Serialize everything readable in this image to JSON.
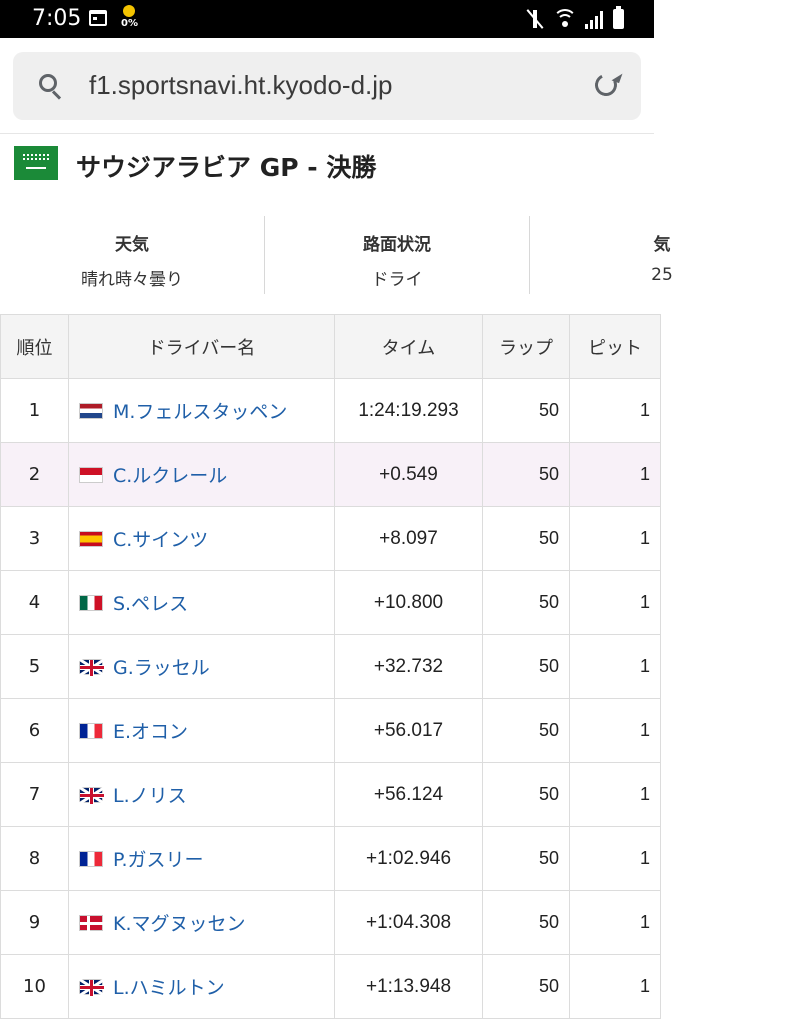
{
  "status_bar": {
    "time": "7:05",
    "data_percent": "0%"
  },
  "browser": {
    "url": "f1.sportsnavi.ht.kyodo-d.jp"
  },
  "race": {
    "title": "サウジアラビア GP - 決勝",
    "flag_icon": "saudi-arabia-flag-icon"
  },
  "conditions": [
    {
      "label": "天気",
      "value": "晴れ時々曇り"
    },
    {
      "label": "路面状況",
      "value": "ドライ"
    },
    {
      "label": "気",
      "value": "25"
    }
  ],
  "table": {
    "headers": [
      "順位",
      "ドライバー名",
      "タイム",
      "ラップ",
      "ピット"
    ],
    "rows": [
      {
        "pos": "1",
        "flag": "netherlands-flag-icon",
        "driver": "M.フェルスタッペン",
        "time": "1:24:19.293",
        "laps": "50",
        "pits": "1"
      },
      {
        "pos": "2",
        "flag": "monaco-flag-icon",
        "driver": "C.ルクレール",
        "time": "+0.549",
        "laps": "50",
        "pits": "1"
      },
      {
        "pos": "3",
        "flag": "spain-flag-icon",
        "driver": "C.サインツ",
        "time": "+8.097",
        "laps": "50",
        "pits": "1"
      },
      {
        "pos": "4",
        "flag": "mexico-flag-icon",
        "driver": "S.ペレス",
        "time": "+10.800",
        "laps": "50",
        "pits": "1"
      },
      {
        "pos": "5",
        "flag": "uk-flag-icon",
        "driver": "G.ラッセル",
        "time": "+32.732",
        "laps": "50",
        "pits": "1"
      },
      {
        "pos": "6",
        "flag": "france-flag-icon",
        "driver": "E.オコン",
        "time": "+56.017",
        "laps": "50",
        "pits": "1"
      },
      {
        "pos": "7",
        "flag": "uk-flag-icon",
        "driver": "L.ノリス",
        "time": "+56.124",
        "laps": "50",
        "pits": "1"
      },
      {
        "pos": "8",
        "flag": "france-flag-icon",
        "driver": "P.ガスリー",
        "time": "+1:02.946",
        "laps": "50",
        "pits": "1"
      },
      {
        "pos": "9",
        "flag": "denmark-flag-icon",
        "driver": "K.マグヌッセン",
        "time": "+1:04.308",
        "laps": "50",
        "pits": "1"
      },
      {
        "pos": "10",
        "flag": "uk-flag-icon",
        "driver": "L.ハミルトン",
        "time": "+1:13.948",
        "laps": "50",
        "pits": "1"
      }
    ]
  },
  "colors": {
    "driver_link": "#1f5fa8",
    "highlight_row": "#f8f1f8",
    "saudi_green": "#1b8a38"
  }
}
